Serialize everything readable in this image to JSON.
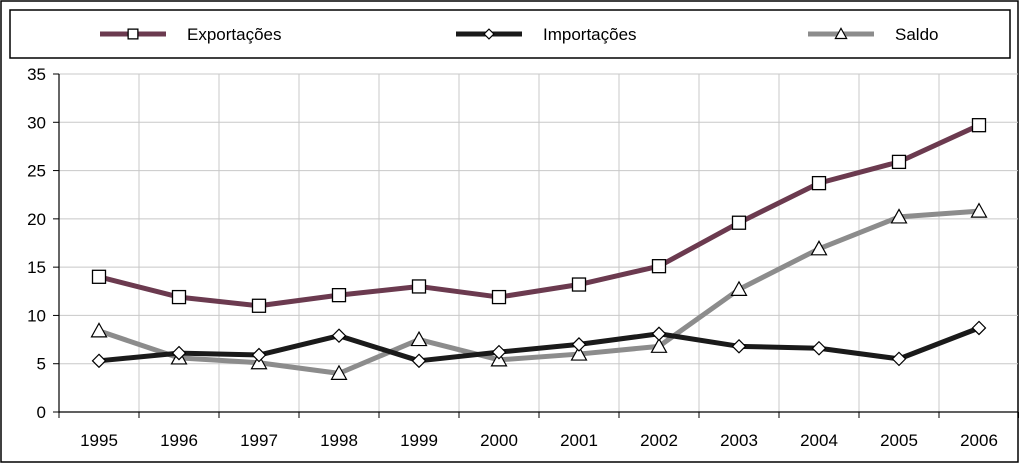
{
  "chart_data": {
    "type": "line",
    "categories": [
      "1995",
      "1996",
      "1997",
      "1998",
      "1999",
      "2000",
      "2001",
      "2002",
      "2003",
      "2004",
      "2005",
      "2006"
    ],
    "ylim": [
      0,
      35
    ],
    "yticks": [
      "0",
      "5",
      "10",
      "15",
      "20",
      "25",
      "30",
      "35"
    ],
    "grid": true,
    "legend_position": "top",
    "series": [
      {
        "name": "Exportações",
        "values": [
          14.0,
          11.9,
          11.0,
          12.1,
          13.0,
          11.9,
          13.2,
          15.1,
          19.6,
          23.7,
          25.9,
          29.7
        ],
        "color": "#6b3a4f",
        "marker": "square"
      },
      {
        "name": "Importações",
        "values": [
          5.3,
          6.1,
          5.9,
          7.9,
          5.3,
          6.2,
          7.0,
          8.1,
          6.8,
          6.6,
          5.5,
          8.7
        ],
        "color": "#1a1a1a",
        "marker": "diamond"
      },
      {
        "name": "Saldo",
        "values": [
          8.4,
          5.6,
          5.1,
          4.0,
          7.5,
          5.4,
          6.0,
          6.8,
          12.7,
          16.9,
          20.2,
          20.8
        ],
        "color": "#8c8c8c",
        "marker": "triangle"
      }
    ]
  }
}
